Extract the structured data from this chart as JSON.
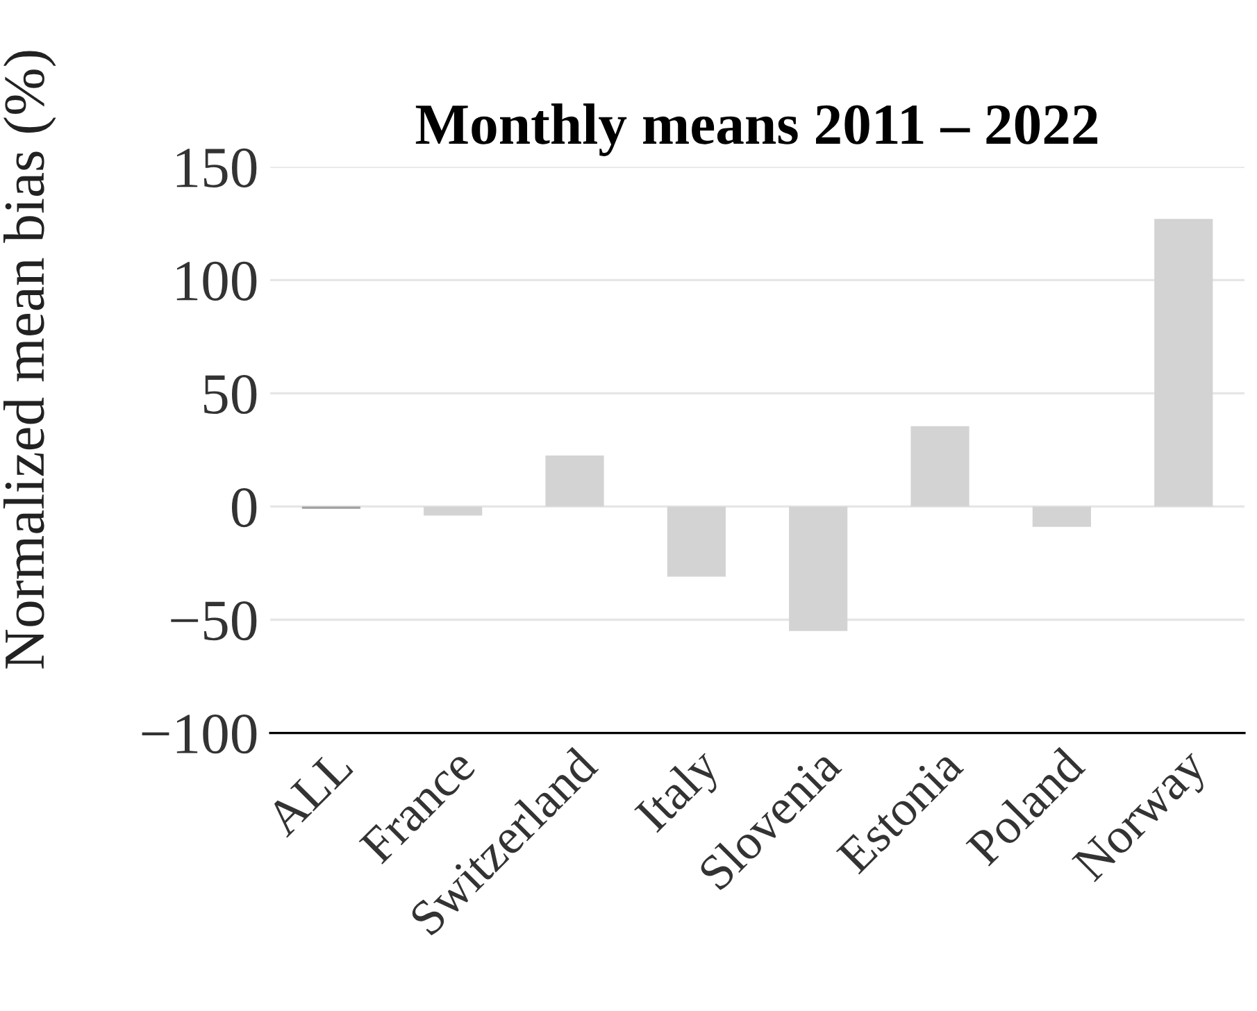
{
  "chart_data": {
    "type": "bar",
    "title": "Monthly means 2011 – 2022",
    "ylabel": "Normalized mean bias (%)",
    "categories": [
      "ALL",
      "France",
      "Switzerland",
      "Italy",
      "Slovenia",
      "Estonia",
      "Poland",
      "Norway"
    ],
    "values": [
      -1,
      -4,
      22.5,
      -31,
      -55,
      35.5,
      -9,
      127
    ],
    "colors": [
      "#a0a0a0",
      "#d3d3d3",
      "#d3d3d3",
      "#d3d3d3",
      "#d3d3d3",
      "#d3d3d3",
      "#d3d3d3",
      "#d3d3d3"
    ],
    "ylim": [
      -100,
      150
    ],
    "yticks": [
      -100,
      -50,
      0,
      50,
      100,
      150
    ],
    "grid": "y"
  }
}
